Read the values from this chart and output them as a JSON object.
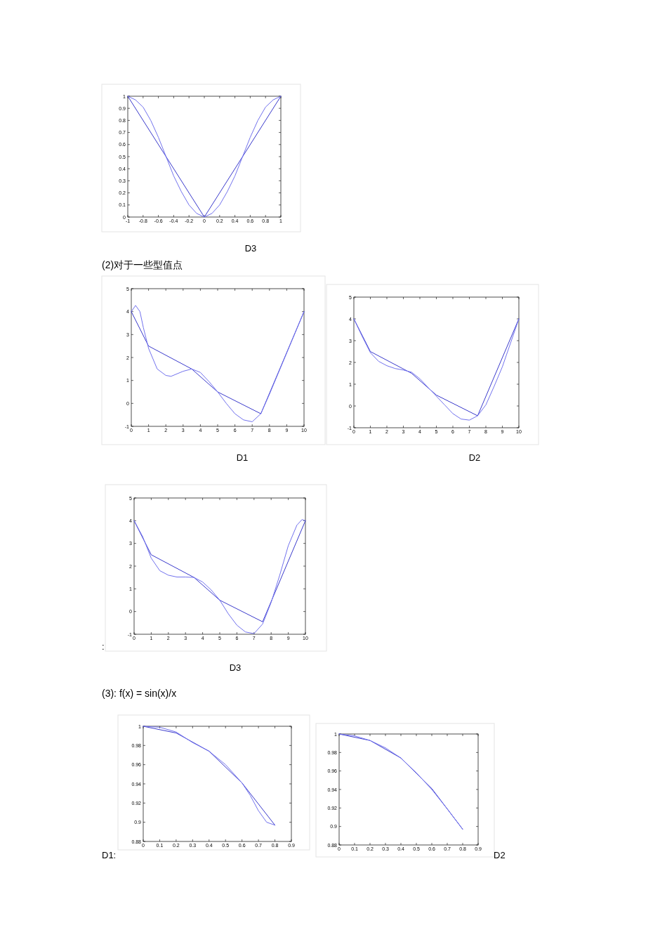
{
  "chart_data": [
    {
      "type": "line",
      "annotations": [
        "D3"
      ],
      "xlim": [
        -1,
        1
      ],
      "ylim": [
        0,
        1
      ],
      "xticks": [
        -1,
        -0.8,
        -0.6,
        -0.4,
        -0.2,
        0,
        0.2,
        0.4,
        0.6,
        0.8,
        1
      ],
      "yticks": [
        0,
        0.1,
        0.2,
        0.3,
        0.4,
        0.5,
        0.6,
        0.7,
        0.8,
        0.9,
        1
      ],
      "series": [
        {
          "color": "#3a3acc",
          "x": [
            -1,
            -0.5,
            0,
            0.5,
            1
          ],
          "values": [
            1,
            0.5,
            0,
            0.5,
            1
          ]
        },
        {
          "color": "#7272ee",
          "x": [
            -1,
            -0.9,
            -0.8,
            -0.7,
            -0.6,
            -0.5,
            -0.4,
            -0.3,
            -0.2,
            -0.1,
            0,
            0.1,
            0.2,
            0.3,
            0.4,
            0.5,
            0.6,
            0.7,
            0.8,
            0.9,
            1
          ],
          "values": [
            1,
            0.97,
            0.91,
            0.8,
            0.66,
            0.5,
            0.34,
            0.21,
            0.1,
            0.03,
            0,
            0.03,
            0.1,
            0.21,
            0.34,
            0.5,
            0.66,
            0.8,
            0.91,
            0.97,
            1
          ]
        }
      ]
    },
    {
      "type": "line",
      "title": "(2)对于一些型值点",
      "annotations": [
        "D1"
      ],
      "xlim": [
        0,
        10
      ],
      "ylim": [
        -1,
        5
      ],
      "xticks": [
        0,
        1,
        2,
        3,
        4,
        5,
        6,
        7,
        8,
        9,
        10
      ],
      "yticks": [
        -1,
        0,
        1,
        2,
        3,
        4,
        5
      ],
      "series": [
        {
          "color": "#3a3acc",
          "x": [
            0,
            1,
            3.5,
            5,
            7.5,
            10
          ],
          "values": [
            4,
            2.5,
            1.5,
            0.5,
            -0.45,
            4
          ]
        },
        {
          "color": "#7272ee",
          "x": [
            0,
            0.25,
            0.5,
            0.7,
            1,
            1.5,
            2,
            2.3,
            3,
            3.5,
            4,
            4.5,
            5,
            5.5,
            6,
            6.5,
            7,
            7.5,
            8,
            8.5,
            9,
            9.5,
            10
          ],
          "values": [
            4,
            4.27,
            4,
            3.3,
            2.4,
            1.5,
            1.22,
            1.18,
            1.4,
            1.5,
            1.35,
            0.95,
            0.5,
            0,
            -0.45,
            -0.72,
            -0.8,
            -0.45,
            0.4,
            1.3,
            2.2,
            3.1,
            4
          ]
        }
      ]
    },
    {
      "type": "line",
      "annotations": [
        "D2"
      ],
      "xlim": [
        0,
        10
      ],
      "ylim": [
        -1,
        5
      ],
      "xticks": [
        0,
        1,
        2,
        3,
        4,
        5,
        6,
        7,
        8,
        9,
        10
      ],
      "yticks": [
        -1,
        0,
        1,
        2,
        3,
        4,
        5
      ],
      "series": [
        {
          "color": "#3a3acc",
          "x": [
            0,
            1,
            3.5,
            5,
            7.5,
            10
          ],
          "values": [
            4,
            2.5,
            1.5,
            0.5,
            -0.45,
            4
          ]
        },
        {
          "color": "#7272ee",
          "x": [
            0,
            0.5,
            1,
            1.5,
            2,
            2.5,
            3,
            3.5,
            4,
            4.5,
            5,
            5.5,
            6,
            6.5,
            7,
            7.5,
            8,
            8.5,
            9,
            9.5,
            10
          ],
          "values": [
            4,
            3.2,
            2.45,
            2.05,
            1.85,
            1.72,
            1.65,
            1.55,
            1.25,
            0.85,
            0.45,
            0.05,
            -0.35,
            -0.6,
            -0.65,
            -0.45,
            0.05,
            0.9,
            1.8,
            2.9,
            4
          ]
        }
      ]
    },
    {
      "type": "line",
      "annotations": [
        ":",
        "D3"
      ],
      "xlim": [
        0,
        10
      ],
      "ylim": [
        -1,
        5
      ],
      "xticks": [
        0,
        1,
        2,
        3,
        4,
        5,
        6,
        7,
        8,
        9,
        10
      ],
      "yticks": [
        -1,
        0,
        1,
        2,
        3,
        4,
        5
      ],
      "series": [
        {
          "color": "#3a3acc",
          "x": [
            0,
            1,
            3.5,
            5,
            7.5,
            10
          ],
          "values": [
            4,
            2.5,
            1.5,
            0.5,
            -0.45,
            4
          ]
        },
        {
          "color": "#7272ee",
          "x": [
            0,
            0.5,
            1,
            1.5,
            2,
            2.5,
            3,
            3.5,
            4,
            4.5,
            5,
            5.5,
            6,
            6.5,
            7,
            7.5,
            8,
            8.5,
            9,
            9.5,
            9.8,
            10
          ],
          "values": [
            4,
            3.3,
            2.35,
            1.8,
            1.6,
            1.52,
            1.52,
            1.5,
            1.3,
            0.95,
            0.5,
            -0.1,
            -0.6,
            -0.9,
            -0.97,
            -0.55,
            0.4,
            1.6,
            2.9,
            3.8,
            4.05,
            4
          ]
        }
      ]
    },
    {
      "type": "line",
      "title": "(3):  f(x) = sin(x)/x",
      "annotations": [
        "D1:"
      ],
      "xlim": [
        0,
        0.9
      ],
      "ylim": [
        0.88,
        1
      ],
      "xticks": [
        0,
        0.1,
        0.2,
        0.3,
        0.4,
        0.5,
        0.6,
        0.7,
        0.8,
        0.9
      ],
      "yticks": [
        0.88,
        0.9,
        0.92,
        0.94,
        0.96,
        0.98,
        1
      ],
      "series": [
        {
          "color": "#3a3acc",
          "x": [
            0,
            0.2,
            0.4,
            0.6,
            0.8
          ],
          "values": [
            1,
            0.993,
            0.974,
            0.941,
            0.897
          ]
        },
        {
          "color": "#7272ee",
          "x": [
            0,
            0.1,
            0.2,
            0.3,
            0.4,
            0.5,
            0.6,
            0.65,
            0.7,
            0.75,
            0.8
          ],
          "values": [
            1,
            0.999,
            0.994,
            0.983,
            0.974,
            0.96,
            0.941,
            0.928,
            0.912,
            0.9,
            0.897
          ]
        }
      ]
    },
    {
      "type": "line",
      "annotations": [
        "D2"
      ],
      "xlim": [
        0,
        0.9
      ],
      "ylim": [
        0.88,
        1
      ],
      "xticks": [
        0,
        0.1,
        0.2,
        0.3,
        0.4,
        0.5,
        0.6,
        0.7,
        0.8,
        0.9
      ],
      "yticks": [
        0.88,
        0.9,
        0.92,
        0.94,
        0.96,
        0.98,
        1
      ],
      "series": [
        {
          "color": "#3a3acc",
          "x": [
            0,
            0.2,
            0.4,
            0.6,
            0.8
          ],
          "values": [
            1,
            0.993,
            0.974,
            0.941,
            0.897
          ]
        },
        {
          "color": "#7272ee",
          "x": [
            0,
            0.1,
            0.2,
            0.3,
            0.4,
            0.5,
            0.6,
            0.7,
            0.8
          ],
          "values": [
            1,
            0.998,
            0.993,
            0.985,
            0.974,
            0.958,
            0.94,
            0.919,
            0.897
          ]
        }
      ]
    }
  ]
}
